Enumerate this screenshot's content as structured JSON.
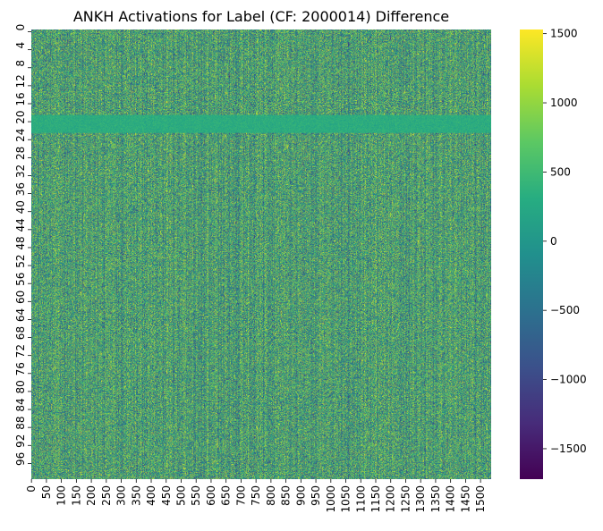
{
  "chart_data": {
    "type": "heatmap",
    "title": "ANKH Activations for Label (CF: 2000014) Difference",
    "xlabel": "",
    "ylabel": "",
    "rows": 100,
    "cols": 1536,
    "x_ticks": [
      0,
      50,
      100,
      150,
      200,
      250,
      300,
      350,
      400,
      450,
      500,
      550,
      600,
      650,
      700,
      750,
      800,
      850,
      900,
      950,
      1000,
      1050,
      1100,
      1150,
      1200,
      1250,
      1300,
      1350,
      1400,
      1450,
      1500
    ],
    "y_ticks": [
      0,
      4,
      8,
      12,
      16,
      20,
      24,
      28,
      32,
      36,
      40,
      44,
      48,
      52,
      56,
      60,
      64,
      68,
      72,
      76,
      80,
      84,
      88,
      92,
      96
    ],
    "colorbar": {
      "colormap": "viridis",
      "vmin": -1720,
      "vmax": 1530,
      "ticks": [
        -1500,
        -1000,
        -500,
        0,
        500,
        1000,
        1500
      ],
      "tick_labels": [
        "−1500",
        "−1000",
        "−500",
        "0",
        "500",
        "1000",
        "1500"
      ]
    },
    "values_note": "Dense noisy field; values span roughly -1720 to 1530.",
    "row_character": {
      "low_variance_rows": [
        19,
        20,
        21,
        22
      ],
      "low_variance_value": 300
    }
  }
}
